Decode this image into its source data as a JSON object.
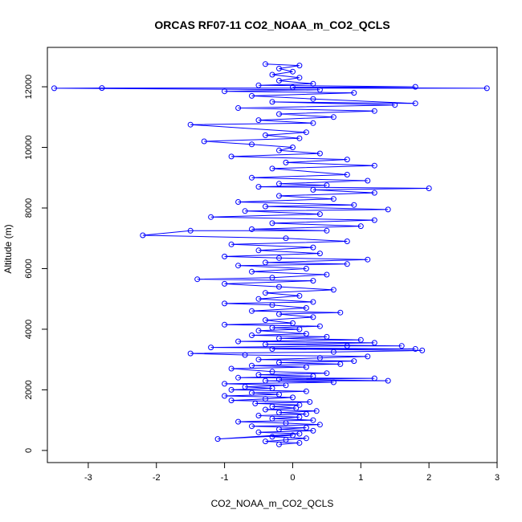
{
  "chart_data": {
    "type": "scatter",
    "title": "ORCAS RF07-11 CO2_NOAA_m_CO2_QCLS",
    "xlabel": "CO2_NOAA_m_CO2_QCLS",
    "ylabel": "Altitude (m)",
    "xlim": [
      -3.6,
      3.0
    ],
    "ylim": [
      -400,
      13300
    ],
    "x_ticks": [
      -3,
      -2,
      -1,
      0,
      1,
      2,
      3
    ],
    "y_ticks": [
      0,
      2000,
      4000,
      6000,
      8000,
      10000,
      12000
    ],
    "grid": false,
    "legend": "none",
    "marker": "open-circle",
    "connected": true,
    "series_color": "#0000ff",
    "series": [
      {
        "points": [
          [
            -0.2,
            200
          ],
          [
            0.1,
            250
          ],
          [
            -0.4,
            300
          ],
          [
            -0.1,
            350
          ],
          [
            0.2,
            400
          ],
          [
            -0.3,
            450
          ],
          [
            0.0,
            500
          ],
          [
            -1.1,
            380
          ],
          [
            0.1,
            550
          ],
          [
            -0.5,
            600
          ],
          [
            0.3,
            650
          ],
          [
            -0.2,
            700
          ],
          [
            0.2,
            750
          ],
          [
            -0.6,
            800
          ],
          [
            0.4,
            850
          ],
          [
            -0.1,
            900
          ],
          [
            -0.8,
            950
          ],
          [
            0.3,
            1000
          ],
          [
            -0.3,
            1050
          ],
          [
            0.1,
            1100
          ],
          [
            -0.5,
            1150
          ],
          [
            0.2,
            1200
          ],
          [
            -0.2,
            1250
          ],
          [
            0.35,
            1300
          ],
          [
            -0.4,
            1350
          ],
          [
            0.05,
            1400
          ],
          [
            -0.3,
            1450
          ],
          [
            0.1,
            1500
          ],
          [
            -0.55,
            1550
          ],
          [
            0.25,
            1600
          ],
          [
            -0.9,
            1650
          ],
          [
            -0.4,
            1700
          ],
          [
            0.0,
            1750
          ],
          [
            -1.0,
            1800
          ],
          [
            -0.2,
            1850
          ],
          [
            -0.6,
            1900
          ],
          [
            0.2,
            1950
          ],
          [
            -0.9,
            2000
          ],
          [
            -0.3,
            2050
          ],
          [
            -0.7,
            2100
          ],
          [
            -0.1,
            2150
          ],
          [
            -1.0,
            2200
          ],
          [
            0.6,
            2250
          ],
          [
            -0.4,
            2300
          ],
          [
            1.4,
            2300
          ],
          [
            -0.2,
            2350
          ],
          [
            1.2,
            2380
          ],
          [
            -0.8,
            2400
          ],
          [
            0.3,
            2450
          ],
          [
            -0.5,
            2500
          ],
          [
            0.5,
            2550
          ],
          [
            -0.3,
            2600
          ],
          [
            -0.9,
            2700
          ],
          [
            0.2,
            2750
          ],
          [
            -0.6,
            2800
          ],
          [
            0.7,
            2850
          ],
          [
            -0.2,
            2900
          ],
          [
            0.9,
            2950
          ],
          [
            -0.5,
            3000
          ],
          [
            0.4,
            3050
          ],
          [
            1.1,
            3100
          ],
          [
            -0.7,
            3150
          ],
          [
            -1.5,
            3200
          ],
          [
            0.6,
            3250
          ],
          [
            1.9,
            3300
          ],
          [
            -0.3,
            3350
          ],
          [
            1.8,
            3350
          ],
          [
            -1.2,
            3400
          ],
          [
            0.8,
            3450
          ],
          [
            1.6,
            3450
          ],
          [
            -0.4,
            3500
          ],
          [
            1.2,
            3550
          ],
          [
            -0.8,
            3600
          ],
          [
            1.0,
            3650
          ],
          [
            -0.2,
            3700
          ],
          [
            0.5,
            3750
          ],
          [
            -0.6,
            3800
          ],
          [
            0.2,
            3850
          ],
          [
            -0.5,
            3950
          ],
          [
            0.1,
            4000
          ],
          [
            -0.3,
            4050
          ],
          [
            0.4,
            4100
          ],
          [
            -1.0,
            4150
          ],
          [
            0.0,
            4200
          ],
          [
            -0.4,
            4300
          ],
          [
            0.3,
            4400
          ],
          [
            -0.2,
            4500
          ],
          [
            0.7,
            4550
          ],
          [
            -0.6,
            4600
          ],
          [
            0.2,
            4700
          ],
          [
            -0.3,
            4800
          ],
          [
            -1.0,
            4850
          ],
          [
            0.3,
            4900
          ],
          [
            -0.5,
            5000
          ],
          [
            0.1,
            5100
          ],
          [
            -0.4,
            5200
          ],
          [
            0.6,
            5300
          ],
          [
            -0.2,
            5400
          ],
          [
            -1.0,
            5500
          ],
          [
            0.3,
            5600
          ],
          [
            -1.4,
            5650
          ],
          [
            -0.3,
            5700
          ],
          [
            0.5,
            5800
          ],
          [
            -0.6,
            5900
          ],
          [
            0.2,
            6000
          ],
          [
            -0.8,
            6100
          ],
          [
            0.8,
            6150
          ],
          [
            -0.4,
            6200
          ],
          [
            1.1,
            6300
          ],
          [
            -0.2,
            6350
          ],
          [
            -1.0,
            6400
          ],
          [
            0.4,
            6500
          ],
          [
            -0.5,
            6600
          ],
          [
            0.3,
            6700
          ],
          [
            -0.9,
            6800
          ],
          [
            0.8,
            6900
          ],
          [
            -0.1,
            7000
          ],
          [
            -2.2,
            7100
          ],
          [
            -1.5,
            7250
          ],
          [
            0.5,
            7250
          ],
          [
            -0.6,
            7300
          ],
          [
            1.0,
            7400
          ],
          [
            -0.3,
            7500
          ],
          [
            1.2,
            7600
          ],
          [
            -1.2,
            7700
          ],
          [
            0.4,
            7800
          ],
          [
            -0.7,
            7900
          ],
          [
            1.4,
            7950
          ],
          [
            -0.4,
            8050
          ],
          [
            0.9,
            8100
          ],
          [
            -0.8,
            8200
          ],
          [
            0.6,
            8300
          ],
          [
            -0.2,
            8400
          ],
          [
            1.2,
            8500
          ],
          [
            0.3,
            8600
          ],
          [
            2.0,
            8650
          ],
          [
            -0.5,
            8700
          ],
          [
            0.5,
            8750
          ],
          [
            -0.2,
            8800
          ],
          [
            1.1,
            8900
          ],
          [
            -0.6,
            9000
          ],
          [
            0.8,
            9100
          ],
          [
            -0.3,
            9300
          ],
          [
            1.2,
            9400
          ],
          [
            -0.1,
            9500
          ],
          [
            0.8,
            9600
          ],
          [
            -0.9,
            9700
          ],
          [
            0.4,
            9800
          ],
          [
            -0.2,
            9900
          ],
          [
            0.0,
            10000
          ],
          [
            -0.6,
            10100
          ],
          [
            -1.3,
            10200
          ],
          [
            0.1,
            10300
          ],
          [
            -0.4,
            10400
          ],
          [
            0.2,
            10500
          ],
          [
            -1.5,
            10750
          ],
          [
            0.3,
            10800
          ],
          [
            -0.5,
            10900
          ],
          [
            0.6,
            11000
          ],
          [
            -0.2,
            11100
          ],
          [
            1.2,
            11200
          ],
          [
            -0.8,
            11300
          ],
          [
            1.5,
            11400
          ],
          [
            -0.3,
            11500
          ],
          [
            1.8,
            11450
          ],
          [
            0.3,
            11600
          ],
          [
            -0.6,
            11700
          ],
          [
            0.9,
            11800
          ],
          [
            -1.0,
            11850
          ],
          [
            0.4,
            11900
          ],
          [
            -3.5,
            11950
          ],
          [
            -2.8,
            11960
          ],
          [
            2.85,
            11950
          ],
          [
            0.0,
            11980
          ],
          [
            1.8,
            12000
          ],
          [
            -0.5,
            12050
          ],
          [
            0.3,
            12100
          ],
          [
            -0.2,
            12200
          ],
          [
            0.1,
            12300
          ],
          [
            -0.3,
            12400
          ],
          [
            0.0,
            12500
          ],
          [
            -0.2,
            12600
          ],
          [
            0.1,
            12700
          ],
          [
            -0.4,
            12750
          ]
        ]
      }
    ]
  }
}
